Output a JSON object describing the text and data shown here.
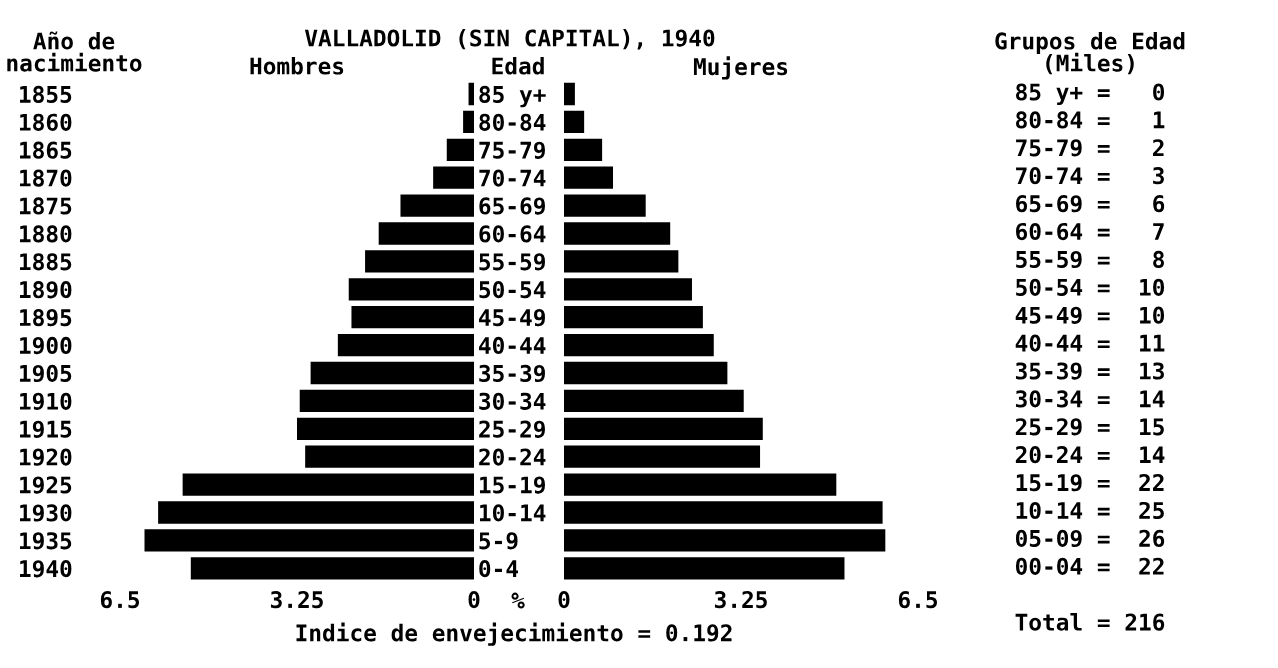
{
  "chart_data": [
    {
      "type": "bar",
      "orientation": "horizontal",
      "title": "VALLADOLID (SIN CAPITAL), 1940",
      "subtitle": "Hombres",
      "ylabel": "Año de\nnacimiento",
      "xlabel": "%",
      "annotations": [
        "Indice de envejecimiento = 0.192"
      ],
      "categories": [
        "1855",
        "1860",
        "1865",
        "1870",
        "1875",
        "1880",
        "1885",
        "1890",
        "1895",
        "1900",
        "1905",
        "1910",
        "1915",
        "1920",
        "1925",
        "1930",
        "1935",
        "1940"
      ],
      "values": [
        0.1,
        0.2,
        0.5,
        0.75,
        1.35,
        1.75,
        2.0,
        2.3,
        2.25,
        2.5,
        3.0,
        3.2,
        3.25,
        3.1,
        5.35,
        5.8,
        6.05,
        5.2
      ],
      "color": "#000000",
      "xlim": [
        6.5,
        0
      ],
      "xticks": [
        6.5,
        3.25,
        0
      ],
      "grid": false,
      "legend": false
    },
    {
      "type": "bar",
      "orientation": "horizontal",
      "subtitle": "Mujeres",
      "ylabel": "Edad",
      "categories": [
        "85 y+",
        "80-84",
        "75-79",
        "70-74",
        "65-69",
        "60-64",
        "55-59",
        "50-54",
        "45-49",
        "40-44",
        "35-39",
        "30-34",
        "25-29",
        "20-24",
        "15-19",
        "10-14",
        "5-9",
        "0-4"
      ],
      "values": [
        0.2,
        0.37,
        0.7,
        0.9,
        1.5,
        1.95,
        2.1,
        2.35,
        2.55,
        2.75,
        3.0,
        3.3,
        3.65,
        3.6,
        5.0,
        5.85,
        5.9,
        5.15
      ],
      "color": "#000000",
      "xlim": [
        0,
        6.5
      ],
      "xticks": [
        0,
        3.25,
        6.5
      ],
      "grid": false,
      "legend": false
    },
    {
      "type": "other",
      "title": "Grupos de Edad\n(Miles)",
      "annotations": [
        "85 y+ =   0",
        "80-84 =   1",
        "75-79 =   2",
        "70-74 =   3",
        "65-69 =   6",
        "60-64 =   7",
        "55-59 =   8",
        "50-54 =  10",
        "45-49 =  10",
        "40-44 =  11",
        "35-39 =  13",
        "30-34 =  14",
        "25-29 =  15",
        "20-24 =  14",
        "15-19 =  22",
        "10-14 =  25",
        "05-09 =  26",
        "00-04 =  22",
        "Total = 216"
      ]
    }
  ]
}
